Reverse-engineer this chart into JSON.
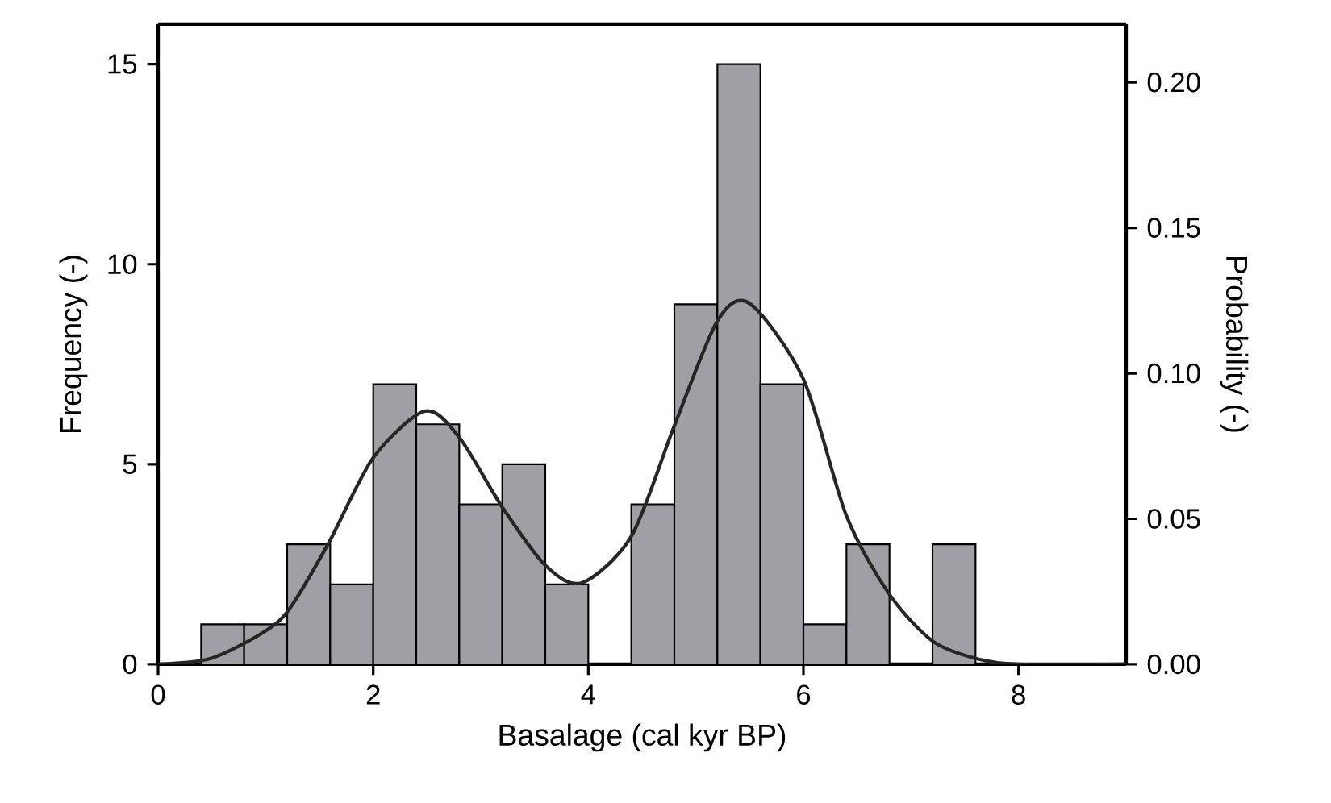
{
  "chart_data": {
    "type": "histogram",
    "xlabel": "Basalage (cal kyr BP)",
    "ylabel": "Frequency (-)",
    "y2label": "Probability (-)",
    "xlim": [
      0,
      9
    ],
    "xticks": [
      0,
      2,
      4,
      6,
      8
    ],
    "ylim": [
      0,
      16
    ],
    "yticks": [
      0,
      5,
      10,
      15
    ],
    "y2lim": [
      0,
      0.22
    ],
    "y2ticks": [
      {
        "value": 0,
        "label": "0.00"
      },
      {
        "value": 0.05,
        "label": "0.05"
      },
      {
        "value": 0.1,
        "label": "0.10"
      },
      {
        "value": 0.15,
        "label": "0.15"
      },
      {
        "value": 0.2,
        "label": "0.20"
      }
    ],
    "grid": false,
    "series": [
      {
        "color": "#a0a0a4",
        "bins": [
          0.4,
          0.8,
          1.2,
          1.6,
          2.0,
          2.4,
          2.8,
          3.2,
          3.6,
          4.0,
          4.4,
          4.8,
          5.2,
          5.6,
          6.0,
          6.4,
          6.8,
          7.2,
          7.6
        ],
        "values": [
          1,
          1,
          3,
          2,
          7,
          6,
          4,
          5,
          2,
          0,
          4,
          9,
          15,
          7,
          1,
          3,
          0,
          3
        ]
      },
      {
        "type": "line",
        "axis": "y2",
        "color": "#262626",
        "x": [
          0,
          0.49,
          0.98,
          1.22,
          1.59,
          2.0,
          2.48,
          2.8,
          3.2,
          3.6,
          3.94,
          4.4,
          4.8,
          5.2,
          5.5,
          6.0,
          6.4,
          6.8,
          7.2,
          7.6,
          8.0,
          9.0
        ],
        "values": [
          0,
          0.002,
          0.011,
          0.019,
          0.042,
          0.071,
          0.087,
          0.078,
          0.054,
          0.034,
          0.028,
          0.044,
          0.082,
          0.118,
          0.124,
          0.098,
          0.051,
          0.024,
          0.008,
          0.002,
          0,
          0
        ]
      }
    ]
  }
}
